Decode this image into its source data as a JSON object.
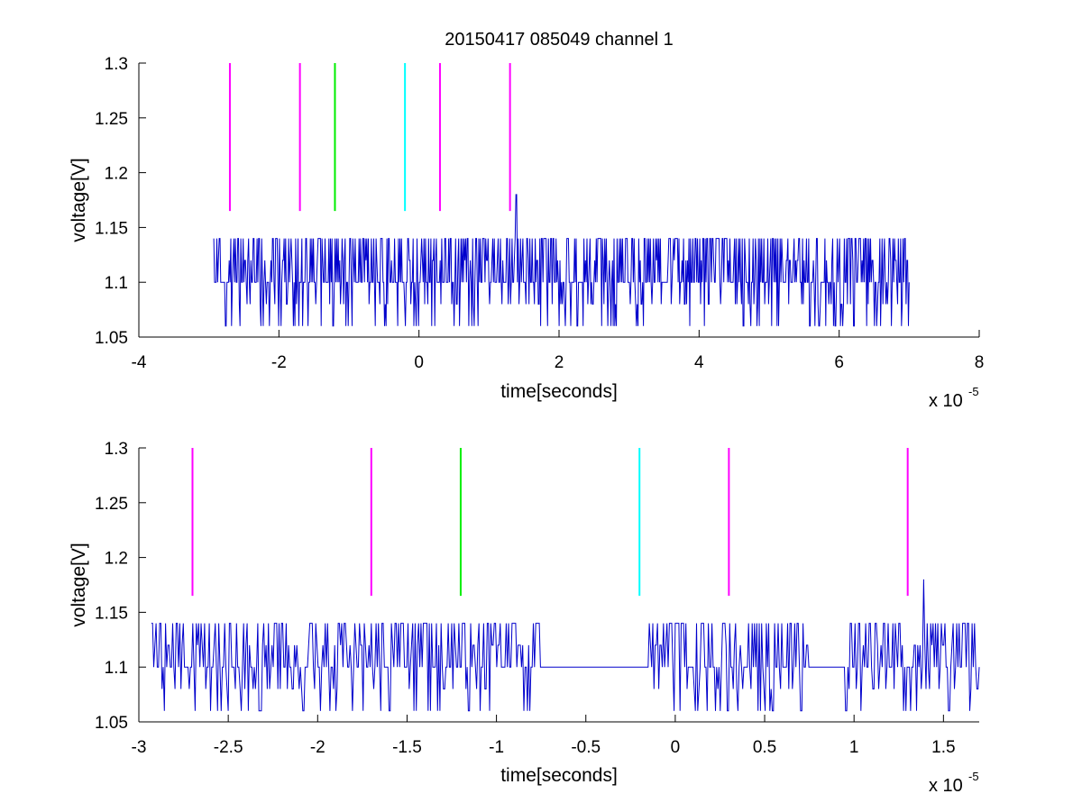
{
  "figure": {
    "background": "#ffffff"
  },
  "chart_data": [
    {
      "type": "line",
      "title": "20150417 085049 channel 1",
      "xlabel": "time[seconds]",
      "ylabel": "voltage[V]",
      "x_exponent_label": "x 10",
      "x_exponent_power": "-5",
      "xlim": [
        -4,
        8
      ],
      "ylim": [
        1.05,
        1.3
      ],
      "xticks": [
        -4,
        -2,
        0,
        2,
        4,
        6,
        8
      ],
      "yticks": [
        1.05,
        1.1,
        1.15,
        1.2,
        1.25,
        1.3
      ],
      "xtick_labels": [
        "-4",
        "-2",
        "0",
        "2",
        "4",
        "6",
        "8"
      ],
      "ytick_labels": [
        "1.05",
        "1.1",
        "1.15",
        "1.2",
        "1.25",
        "1.3"
      ],
      "grid": false,
      "series": [
        {
          "color": "#0000cc",
          "kind": "quantized noise trace",
          "x_range": [
            -2.93,
            7.0
          ],
          "baseline": 1.1,
          "levels": [
            1.06,
            1.08,
            1.1,
            1.12,
            1.14
          ],
          "spike": {
            "x": 1.39,
            "y": 1.18
          }
        }
      ],
      "markers": [
        {
          "x": -2.7,
          "y_range": [
            1.165,
            1.3
          ],
          "color": "#ff00ff"
        },
        {
          "x": -1.7,
          "y_range": [
            1.165,
            1.3
          ],
          "color": "#ff00ff"
        },
        {
          "x": -1.2,
          "y_range": [
            1.165,
            1.3
          ],
          "color": "#00ee00"
        },
        {
          "x": -0.2,
          "y_range": [
            1.165,
            1.3
          ],
          "color": "#00ffff"
        },
        {
          "x": 0.3,
          "y_range": [
            1.165,
            1.3
          ],
          "color": "#ff00ff"
        },
        {
          "x": 1.3,
          "y_range": [
            1.165,
            1.3
          ],
          "color": "#ff00ff"
        }
      ]
    },
    {
      "type": "line",
      "title": "",
      "xlabel": "time[seconds]",
      "ylabel": "voltage[V]",
      "x_exponent_label": "x 10",
      "x_exponent_power": "-5",
      "xlim": [
        -3.0,
        1.7
      ],
      "ylim": [
        1.05,
        1.3
      ],
      "xticks": [
        -3,
        -2.5,
        -2,
        -1.5,
        -1,
        -0.5,
        0,
        0.5,
        1,
        1.5
      ],
      "yticks": [
        1.05,
        1.1,
        1.15,
        1.2,
        1.25,
        1.3
      ],
      "xtick_labels": [
        "-3",
        "-2.5",
        "-2",
        "-1.5",
        "-1",
        "-0.5",
        "0",
        "0.5",
        "1",
        "1.5"
      ],
      "ytick_labels": [
        "1.05",
        "1.1",
        "1.15",
        "1.2",
        "1.25",
        "1.3"
      ],
      "grid": false,
      "series": [
        {
          "color": "#0000cc",
          "kind": "quantized noise trace",
          "x_range": [
            -2.93,
            1.7
          ],
          "baseline": 1.1,
          "levels": [
            1.06,
            1.08,
            1.1,
            1.12,
            1.14
          ],
          "spike": {
            "x": 1.39,
            "y": 1.18
          }
        }
      ],
      "markers": [
        {
          "x": -2.7,
          "y_range": [
            1.165,
            1.3
          ],
          "color": "#ff00ff"
        },
        {
          "x": -1.7,
          "y_range": [
            1.165,
            1.3
          ],
          "color": "#ff00ff"
        },
        {
          "x": -1.2,
          "y_range": [
            1.165,
            1.3
          ],
          "color": "#00ee00"
        },
        {
          "x": -0.2,
          "y_range": [
            1.165,
            1.3
          ],
          "color": "#00ffff"
        },
        {
          "x": 0.3,
          "y_range": [
            1.165,
            1.3
          ],
          "color": "#ff00ff"
        },
        {
          "x": 1.3,
          "y_range": [
            1.165,
            1.3
          ],
          "color": "#ff00ff"
        }
      ]
    }
  ]
}
